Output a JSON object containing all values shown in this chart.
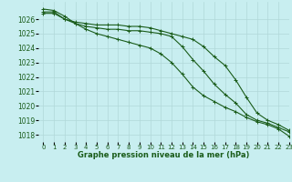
{
  "title": "Graphe pression niveau de la mer (hPa)",
  "background_color": "#c8eef0",
  "grid_color": "#b0d8d8",
  "line_color": "#1a5c1a",
  "text_color": "#1a5c1a",
  "xlim": [
    -0.5,
    23
  ],
  "ylim": [
    1017.5,
    1027.2
  ],
  "xticks": [
    0,
    1,
    2,
    3,
    4,
    5,
    6,
    7,
    8,
    9,
    10,
    11,
    12,
    13,
    14,
    15,
    16,
    17,
    18,
    19,
    20,
    21,
    22,
    23
  ],
  "yticks": [
    1018,
    1019,
    1020,
    1021,
    1022,
    1023,
    1024,
    1025,
    1026
  ],
  "series": [
    [
      1026.7,
      1026.6,
      1026.2,
      1025.7,
      1025.3,
      1025.0,
      1024.8,
      1024.6,
      1024.4,
      1024.2,
      1024.0,
      1023.6,
      1023.0,
      1022.2,
      1021.3,
      1020.7,
      1020.3,
      1019.9,
      1019.6,
      1019.2,
      1018.9,
      1018.7,
      1018.4,
      1017.9
    ],
    [
      1026.5,
      1026.5,
      1026.0,
      1025.7,
      1025.5,
      1025.4,
      1025.3,
      1025.3,
      1025.2,
      1025.2,
      1025.1,
      1025.0,
      1024.8,
      1024.1,
      1023.2,
      1022.4,
      1021.5,
      1020.8,
      1020.2,
      1019.4,
      1019.0,
      1018.8,
      1018.5,
      1018.2
    ],
    [
      1026.4,
      1026.4,
      1026.0,
      1025.8,
      1025.7,
      1025.6,
      1025.6,
      1025.6,
      1025.5,
      1025.5,
      1025.4,
      1025.2,
      1025.0,
      1024.8,
      1024.6,
      1024.1,
      1023.4,
      1022.8,
      1021.8,
      1020.6,
      1019.5,
      1019.0,
      1018.7,
      1018.3
    ]
  ]
}
